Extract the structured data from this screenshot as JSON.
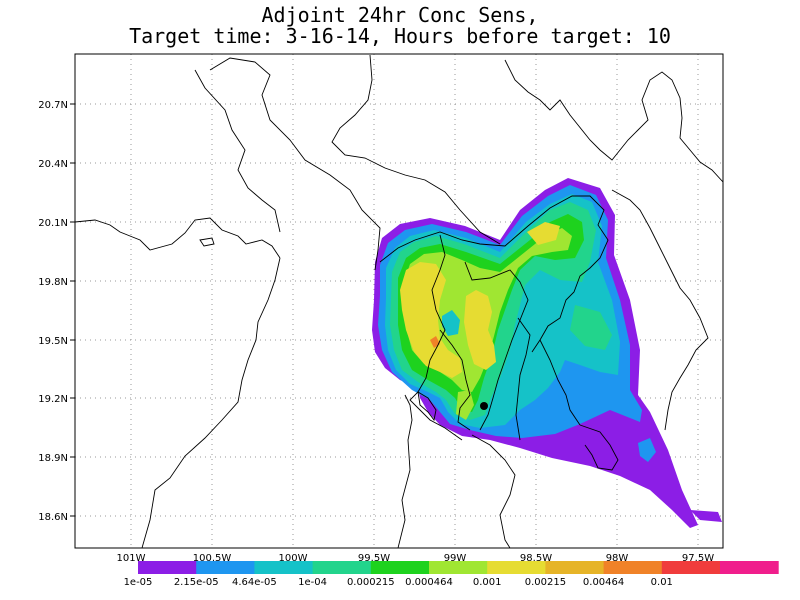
{
  "title": {
    "line1": "Adjoint 24hr Conc Sens,",
    "line2": "Target time: 3-16-14, Hours before target: 10"
  },
  "map": {
    "lat_labels": [
      "20.7N",
      "20.4N",
      "20.1N",
      "19.8N",
      "19.5N",
      "19.2N",
      "18.9N",
      "18.6N"
    ],
    "lon_labels": [
      "101W",
      "100.5W",
      "100W",
      "99.5W",
      "99W",
      "98.5W",
      "98W",
      "97.5W"
    ],
    "marker": "target-point",
    "colors": {
      "purple": "#8c1ee6",
      "lightblue": "#1e96f0",
      "teal": "#15c2c8",
      "seagreen": "#22d48c",
      "green": "#1ed21e",
      "lime": "#a0e632",
      "yellow": "#e6dc32",
      "gold": "#e6b428",
      "orange": "#f08228",
      "red": "#f03c3c",
      "magenta": "#f01e8c"
    }
  },
  "colorbar": {
    "colors": [
      "#8c1ee6",
      "#1e96f0",
      "#15c2c8",
      "#22d48c",
      "#1ed21e",
      "#a0e632",
      "#e6dc32",
      "#e6b428",
      "#f08228",
      "#f03c3c",
      "#f01e8c"
    ],
    "labels": [
      "1e-05",
      "2.15e-05",
      "4.64e-05",
      "1e-04",
      "0.000215",
      "0.000464",
      "0.001",
      "0.00215",
      "0.00464",
      "0.01"
    ]
  }
}
